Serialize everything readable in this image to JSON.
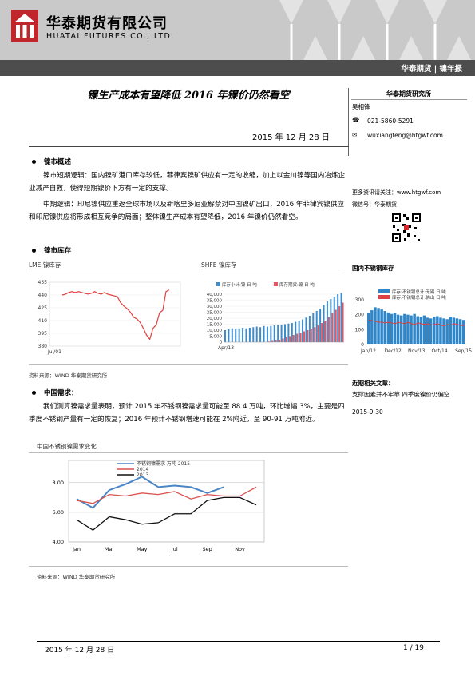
{
  "header": {
    "company_cn": "华泰期货有限公司",
    "company_en": "HUATAI FUTURES CO., LTD.",
    "tag": "华泰期货 | 镍年报"
  },
  "report": {
    "title": "镍生产成本有望降低 2016 年镍价仍然看空",
    "date": "2015 年 12 月 28 日"
  },
  "sidebar": {
    "institute": "华泰期货研究所",
    "analyst": "吴相锋",
    "phone": "021-5860-5291",
    "email": "wuxiangfeng@htgwf.com",
    "more": "更多资讯请关注：www.htgwf.com",
    "wechat": "微信号：华泰期货",
    "chart_title": "国内不锈钢库存",
    "related_title": "近期相关文章：",
    "related_article": "支撑因素并不牢靠 四季度镍价仍偏空",
    "related_date": "2015-9-30"
  },
  "sections": {
    "s1_heading": "镍市概述",
    "s1_p1": "镍市短期逻辑：国内镍矿港口库存较低，菲律宾镍矿供应有一定的收缩，加上以金川镍等国内冶炼企业减产自救，使得短期镍价下方有一定的支撑。",
    "s1_p2": "中期逻辑：印尼镍供应重返全球市场以及新喀里多尼亚解禁对中国镍矿出口，2016 年菲律宾镍供应和印尼镍供应将形成相互竞争的局面；整体镍生产成本有望降低，2016 年镍价仍然看空。",
    "s2_heading": "镍市库存",
    "lme_title": "LME 镍库存",
    "shfe_title": "SHFE 镍库存",
    "source1": "资料来源：WIND 华泰期货研究所",
    "s3_heading": "中国需求：",
    "s3_p1": "我们测算镍需求量表明，预计 2015 年不锈钢镍需求量可能至 88.4 万吨，环比增幅 3%，主要是四季度不锈钢产量有一定的恢复；2016 年预计不锈钢增速可能在 2%附近，至 90-91 万吨附近。",
    "demand_title": "中国不锈钢镍需求变化",
    "source2": "资料来源：WIND 华泰期货研究所"
  },
  "footer": {
    "date": "2015 年 12 月 28 日",
    "page": "1 / 19"
  },
  "chart_data": [
    {
      "type": "line",
      "title": "LME 镍库存",
      "yticks": [
        "455",
        "440",
        "425",
        "410",
        "395",
        "380"
      ],
      "xticks": [
        "Jul/01"
      ],
      "series": [
        {
          "values": [
            440,
            441,
            443,
            444,
            443,
            444,
            443,
            442,
            441,
            442,
            444,
            442,
            441,
            443,
            441,
            440,
            439,
            438,
            431,
            427,
            424,
            420,
            414,
            412,
            408,
            401,
            393,
            388,
            401,
            405,
            419,
            422,
            444,
            446
          ]
        }
      ],
      "ylim": [
        380,
        455
      ]
    },
    {
      "type": "bar",
      "title": "SHFE 镍库存",
      "legend": [
        "库存小计:镍 日 吨",
        "库存期货:镍 日 吨"
      ],
      "yticks": [
        "40,000",
        "35,000",
        "30,000",
        "25,000",
        "20,000",
        "15,000",
        "10,000",
        "5,000",
        "0"
      ],
      "xticks": [
        "Apr/13"
      ],
      "ylim": [
        0,
        40000
      ],
      "series": [
        {
          "name": "库存小计:镍 日 吨",
          "values": [
            10000,
            11000,
            11500,
            11000,
            11500,
            12000,
            11500,
            12000,
            12500,
            13000,
            12500,
            13500,
            13000,
            13500,
            14000,
            14500,
            14500,
            15000,
            15500,
            16000,
            17000,
            18000,
            19000,
            20500,
            22000,
            24000,
            26000,
            28000,
            31000,
            34000,
            36000,
            38000,
            40000,
            41000
          ]
        },
        {
          "name": "库存期货:镍 日 吨",
          "values": [
            0,
            0,
            0,
            0,
            0,
            0,
            0,
            0,
            0,
            0,
            0,
            0,
            500,
            1000,
            1500,
            2000,
            3000,
            4000,
            5000,
            6000,
            7000,
            8000,
            9000,
            10000,
            11000,
            12500,
            14000,
            16000,
            18000,
            21000,
            24000,
            27000,
            30000,
            33000
          ]
        }
      ]
    },
    {
      "type": "bar",
      "title": "国内不锈钢库存",
      "legend": [
        "库存:不锈钢总计:无锡 日 吨",
        "库存:不锈钢总计:佛山 日 吨"
      ],
      "yticks": [
        "300",
        "200",
        "100",
        "0"
      ],
      "xticks": [
        "Jan/12",
        "Dec/12",
        "Nov/13",
        "Oct/14",
        "Sep/15"
      ],
      "ylim": [
        0,
        300
      ],
      "series": [
        {
          "name": "库存:不锈钢总计:无锡 日 吨",
          "values": [
            210,
            230,
            250,
            245,
            235,
            225,
            215,
            205,
            210,
            200,
            195,
            205,
            200,
            195,
            205,
            190,
            185,
            195,
            180,
            175,
            185,
            190,
            180,
            175,
            170,
            185,
            180,
            175,
            170,
            165
          ]
        },
        {
          "name": "库存:不锈钢总计:佛山 日 吨",
          "values": [
            165,
            160,
            155,
            150,
            150,
            145,
            150,
            145,
            140,
            150,
            145,
            140,
            150,
            140,
            135,
            145,
            140,
            135,
            140,
            130,
            135,
            140,
            130,
            125,
            135,
            130,
            140,
            135,
            130,
            125
          ]
        }
      ]
    },
    {
      "type": "line",
      "title": "中国不锈钢镍需求变化",
      "xticks": [
        "Jan",
        "Mar",
        "May",
        "Jul",
        "Sep",
        "Nov"
      ],
      "yticks": [
        "8.00",
        "6.00",
        "4.00"
      ],
      "ylim": [
        4,
        9.5
      ],
      "series": [
        {
          "name": "不锈钢镍需求 万吨 2015",
          "values": [
            6.9,
            6.3,
            7.5,
            7.9,
            8.4,
            7.7,
            7.8,
            7.7,
            7.3,
            7.7
          ]
        },
        {
          "name": "2014",
          "values": [
            6.8,
            6.6,
            7.2,
            7.1,
            7.3,
            7.2,
            7.4,
            6.9,
            7.2,
            7.1,
            7.1,
            7.7
          ]
        },
        {
          "name": "2013",
          "values": [
            5.5,
            4.8,
            5.7,
            5.5,
            5.2,
            5.3,
            5.9,
            5.9,
            6.8,
            7.0,
            7.0,
            6.5
          ]
        }
      ]
    }
  ]
}
